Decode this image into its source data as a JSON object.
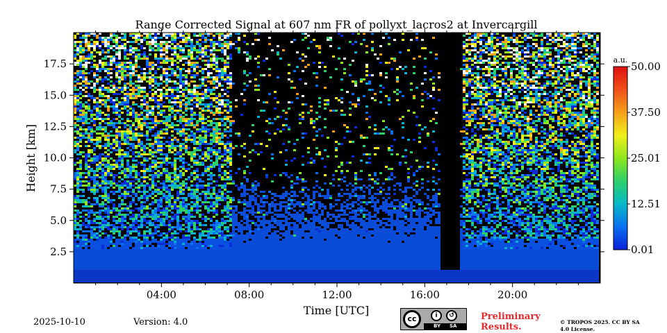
{
  "chart_data": {
    "type": "heatmap",
    "title": "Range Corrected Signal at 607 nm FR of pollyxt_lacros2 at Invercargill",
    "xlabel": "Time [UTC]",
    "ylabel": "Height [km]",
    "xlim_hours": [
      0,
      24
    ],
    "ylim_km": [
      0,
      20
    ],
    "x_tick_hours": [
      4,
      8,
      12,
      16,
      20
    ],
    "x_tick_labels": [
      "04:00",
      "08:00",
      "12:00",
      "16:00",
      "20:00"
    ],
    "y_ticks": [
      2.5,
      5.0,
      7.5,
      10.0,
      12.5,
      15.0,
      17.5
    ],
    "y_tick_labels": [
      "2.5",
      "5.0",
      "7.5",
      "10.0",
      "12.5",
      "15.0",
      "17.5"
    ],
    "colorbar": {
      "label": "a.u.",
      "min": 0.01,
      "max": 50.0,
      "ticks": [
        0.01,
        12.51,
        25.01,
        37.5,
        50.0
      ],
      "tick_labels": [
        "0.01",
        "12.51",
        "25.01",
        "37.50",
        "50.00"
      ],
      "colormap_stops": [
        "#0a1fd8",
        "#0a6ff0",
        "#08b8c8",
        "#2bd06a",
        "#8ee61e",
        "#f0f01a",
        "#f5a01a",
        "#f0501a",
        "#e01010"
      ]
    },
    "colors": {
      "background_noise": "#000000",
      "boundary_layer": "#0a4bd8",
      "surface": "#0a37c4"
    }
  },
  "footer": {
    "date": "2025-10-10",
    "version": "Version: 4.0",
    "preliminary": "Preliminary Results.",
    "license": "© TROPOS 2025. CC BY SA 4.0 License."
  },
  "cc_badge": {
    "cc": "cc",
    "by": "BY",
    "sa": "SA"
  }
}
